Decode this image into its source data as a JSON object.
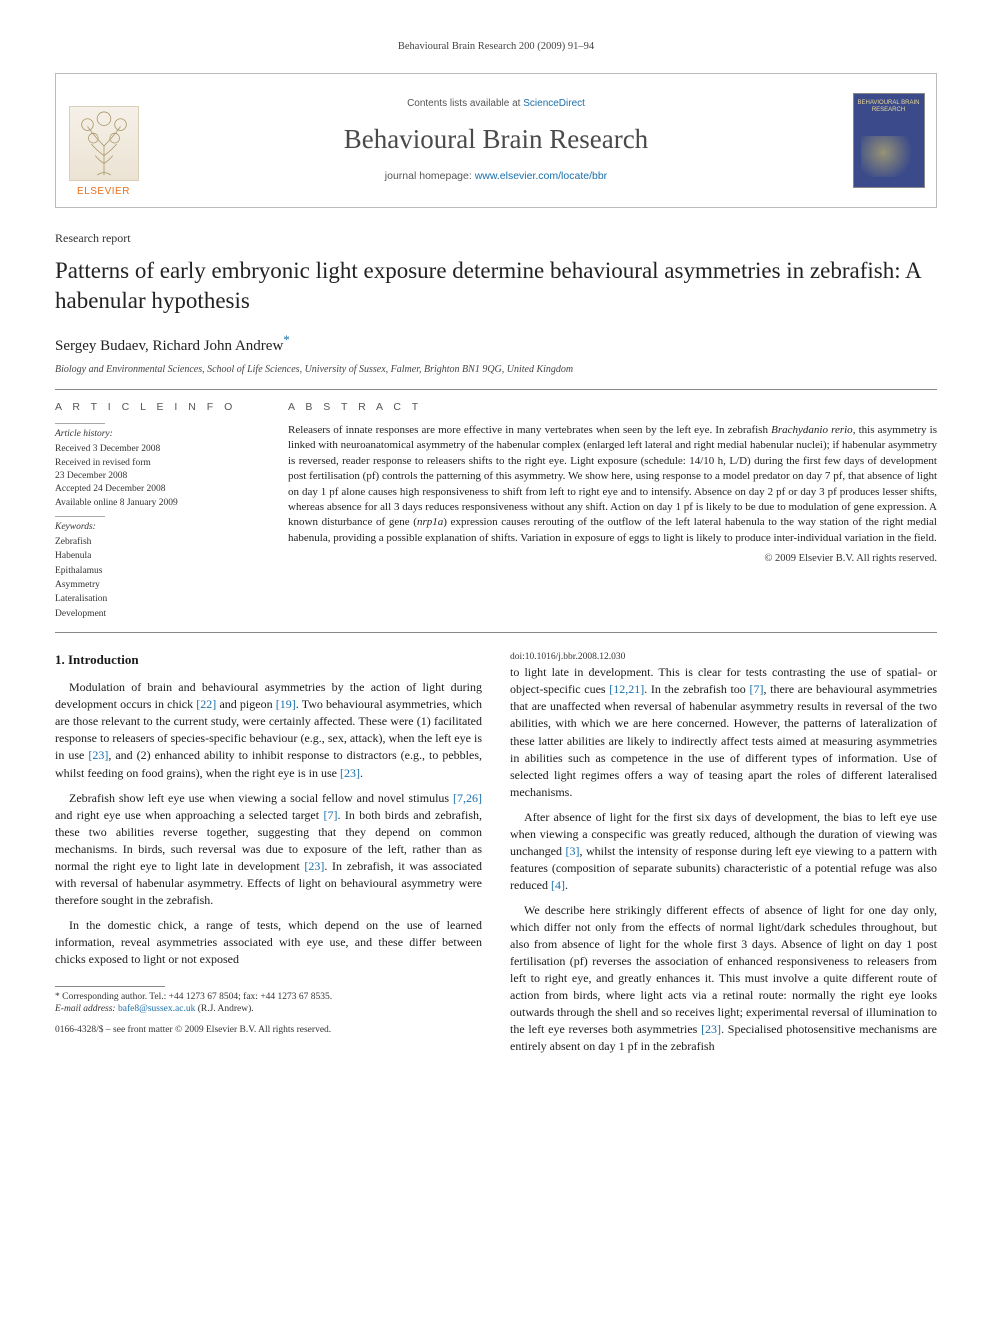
{
  "running_head": "Behavioural Brain Research 200 (2009) 91–94",
  "masthead": {
    "contents_prefix": "Contents lists available at ",
    "contents_link": "ScienceDirect",
    "journal": "Behavioural Brain Research",
    "homepage_prefix": "journal homepage: ",
    "homepage_url": "www.elsevier.com/locate/bbr",
    "publisher": "ELSEVIER",
    "cover_label": "BEHAVIOURAL BRAIN RESEARCH"
  },
  "article": {
    "type": "Research report",
    "title": "Patterns of early embryonic light exposure determine behavioural asymmetries in zebrafish: A habenular hypothesis",
    "authors": "Sergey Budaev, Richard John Andrew",
    "corr_mark": "*",
    "affiliation": "Biology and Environmental Sciences, School of Life Sciences, University of Sussex, Falmer, Brighton BN1 9QG, United Kingdom"
  },
  "info": {
    "heading": "A R T I C L E   I N F O",
    "history_label": "Article history:",
    "received": "Received 3 December 2008",
    "revised1": "Received in revised form",
    "revised2": "23 December 2008",
    "accepted": "Accepted 24 December 2008",
    "online": "Available online 8 January 2009",
    "keywords_label": "Keywords:",
    "keywords": [
      "Zebrafish",
      "Habenula",
      "Epithalamus",
      "Asymmetry",
      "Lateralisation",
      "Development"
    ]
  },
  "abstract": {
    "heading": "A B S T R A C T",
    "body": "Releasers of innate responses are more effective in many vertebrates when seen by the left eye. In zebrafish Brachydanio rerio, this asymmetry is linked with neuroanatomical asymmetry of the habenular complex (enlarged left lateral and right medial habenular nuclei); if habenular asymmetry is reversed, reader response to releasers shifts to the right eye. Light exposure (schedule: 14/10 h, L/D) during the first few days of development post fertilisation (pf) controls the patterning of this asymmetry. We show here, using response to a model predator on day 7 pf, that absence of light on day 1 pf alone causes high responsiveness to shift from left to right eye and to intensify. Absence on day 2 pf or day 3 pf produces lesser shifts, whereas absence for all 3 days reduces responsiveness without any shift. Action on day 1 pf is likely to be due to modulation of gene expression. A known disturbance of gene (nrp1a) expression causes rerouting of the outflow of the left lateral habenula to the way station of the right medial habenula, providing a possible explanation of shifts. Variation in exposure of eggs to light is likely to produce inter-individual variation in the field.",
    "copyright": "© 2009 Elsevier B.V. All rights reserved."
  },
  "body": {
    "h_intro": "1.  Introduction",
    "p1": "Modulation of brain and behavioural asymmetries by the action of light during development occurs in chick [22] and pigeon [19]. Two behavioural asymmetries, which are those relevant to the current study, were certainly affected. These were (1) facilitated response to releasers of species-specific behaviour (e.g., sex, attack), when the left eye is in use [23], and (2) enhanced ability to inhibit response to distractors (e.g., to pebbles, whilst feeding on food grains), when the right eye is in use [23].",
    "p2": "Zebrafish show left eye use when viewing a social fellow and novel stimulus [7,26] and right eye use when approaching a selected target [7]. In both birds and zebrafish, these two abilities reverse together, suggesting that they depend on common mechanisms. In birds, such reversal was due to exposure of the left, rather than as normal the right eye to light late in development [23]. In zebrafish, it was associated with reversal of habenular asymmetry. Effects of light on behavioural asymmetry were therefore sought in the zebrafish.",
    "p3": "In the domestic chick, a range of tests, which depend on the use of learned information, reveal asymmetries associated with eye use, and these differ between chicks exposed to light or not exposed",
    "p4": "to light late in development. This is clear for tests contrasting the use of spatial- or object-specific cues [12,21]. In the zebrafish too [7], there are behavioural asymmetries that are unaffected when reversal of habenular asymmetry results in reversal of the two abilities, with which we are here concerned. However, the patterns of lateralization of these latter abilities are likely to indirectly affect tests aimed at measuring asymmetries in abilities such as competence in the use of different types of information. Use of selected light regimes offers a way of teasing apart the roles of different lateralised mechanisms.",
    "p5": "After absence of light for the first six days of development, the bias to left eye use when viewing a conspecific was greatly reduced, although the duration of viewing was unchanged [3], whilst the intensity of response during left eye viewing to a pattern with features (composition of separate subunits) characteristic of a potential refuge was also reduced [4].",
    "p6": "We describe here strikingly different effects of absence of light for one day only, which differ not only from the effects of normal light/dark schedules throughout, but also from absence of light for the whole first 3 days. Absence of light on day 1 post fertilisation (pf) reverses the association of enhanced responsiveness to releasers from left to right eye, and greatly enhances it. This must involve a quite different route of action from birds, where light acts via a retinal route: normally the right eye looks outwards through the shell and so receives light; experimental reversal of illumination to the left eye reverses both asymmetries [23]. Specialised photosensitive mechanisms are entirely absent on day 1 pf in the zebrafish"
  },
  "footnote": {
    "corr": "* Corresponding author. Tel.: +44 1273 67 8504; fax: +44 1273 67 8535.",
    "email_label": "E-mail address: ",
    "email": "bafe8@sussex.ac.uk",
    "email_who": " (R.J. Andrew).",
    "issn": "0166-4328/$ – see front matter © 2009 Elsevier B.V. All rights reserved.",
    "doi": "doi:10.1016/j.bbr.2008.12.030"
  },
  "colors": {
    "link": "#1b6faa",
    "publisher": "#e9711c",
    "cover_bg": "#3a4a8a",
    "rule": "#888888"
  }
}
